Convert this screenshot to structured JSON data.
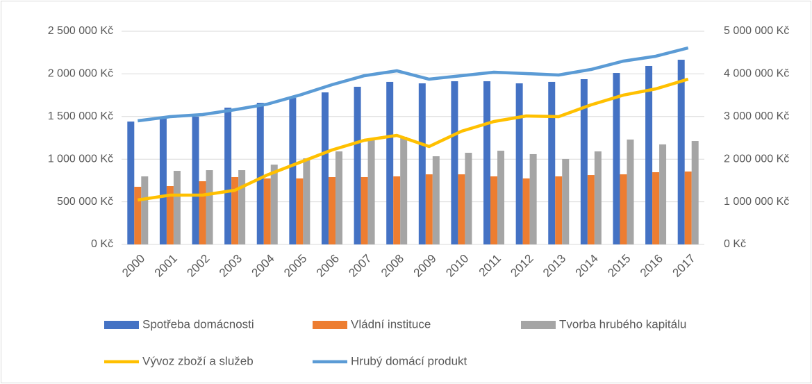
{
  "chart_data": {
    "type": "bar-line",
    "categories": [
      "2000",
      "2001",
      "2002",
      "2003",
      "2004",
      "2005",
      "2006",
      "2007",
      "2008",
      "2009",
      "2010",
      "2011",
      "2012",
      "2013",
      "2014",
      "2015",
      "2016",
      "2017"
    ],
    "series": [
      {
        "name": "Spotřeba domácnosti",
        "type": "bar",
        "color": "#4472c4",
        "values": [
          1441000,
          1482000,
          1498000,
          1604000,
          1661000,
          1718000,
          1783000,
          1849000,
          1906000,
          1889000,
          1914000,
          1914000,
          1889000,
          1906000,
          1938000,
          2011000,
          2093000,
          2166000
        ]
      },
      {
        "name": "Vládní instituce",
        "type": "bar",
        "color": "#ed7d31",
        "values": [
          676000,
          684000,
          741000,
          790000,
          774000,
          774000,
          790000,
          790000,
          798000,
          822000,
          822000,
          798000,
          774000,
          798000,
          814000,
          822000,
          847000,
          855000
        ]
      },
      {
        "name": "Tvorba hrubého kapitálu",
        "type": "bar",
        "color": "#a5a5a5",
        "values": [
          798000,
          863000,
          871000,
          871000,
          936000,
          1010000,
          1091000,
          1238000,
          1262000,
          1034000,
          1075000,
          1099000,
          1059000,
          1002000,
          1091000,
          1230000,
          1173000,
          1213000
        ]
      },
      {
        "name": "Vývoz zboží a služeb",
        "type": "line",
        "axis": "y2",
        "color": "#ffc000",
        "values": [
          1042000,
          1156000,
          1156000,
          1270000,
          1629000,
          1922000,
          2215000,
          2443000,
          2557000,
          2296000,
          2655000,
          2883000,
          3013000,
          2997000,
          3274000,
          3502000,
          3648000,
          3876000
        ]
      },
      {
        "name": "Hrubý domácí produkt",
        "type": "line",
        "axis": "y2",
        "color": "#5b9bd5",
        "values": [
          2899000,
          2997000,
          3046000,
          3160000,
          3290000,
          3502000,
          3746000,
          3958000,
          4072000,
          3876000,
          3958000,
          4039000,
          4007000,
          3974000,
          4104000,
          4300000,
          4414000,
          4609000
        ]
      }
    ],
    "ylim": [
      0,
      2500000
    ],
    "yticks": [
      {
        "value": 0,
        "label": "0 Kč"
      },
      {
        "value": 500000,
        "label": "500 000 Kč"
      },
      {
        "value": 1000000,
        "label": "1 000 000 Kč"
      },
      {
        "value": 1500000,
        "label": "1 500 000 Kč"
      },
      {
        "value": 2000000,
        "label": "2 000 000 Kč"
      },
      {
        "value": 2500000,
        "label": "2 500 000 Kč"
      }
    ],
    "y2lim": [
      0,
      5000000
    ],
    "y2ticks": [
      {
        "value": 0,
        "label": "0 Kč"
      },
      {
        "value": 1000000,
        "label": "1 000 000 Kč"
      },
      {
        "value": 2000000,
        "label": "2 000 000 Kč"
      },
      {
        "value": 3000000,
        "label": "3 000 000 Kč"
      },
      {
        "value": 4000000,
        "label": "4 000 000 Kč"
      },
      {
        "value": 5000000,
        "label": "5 000 000 Kč"
      }
    ],
    "grid": true,
    "legend": "bottom"
  }
}
